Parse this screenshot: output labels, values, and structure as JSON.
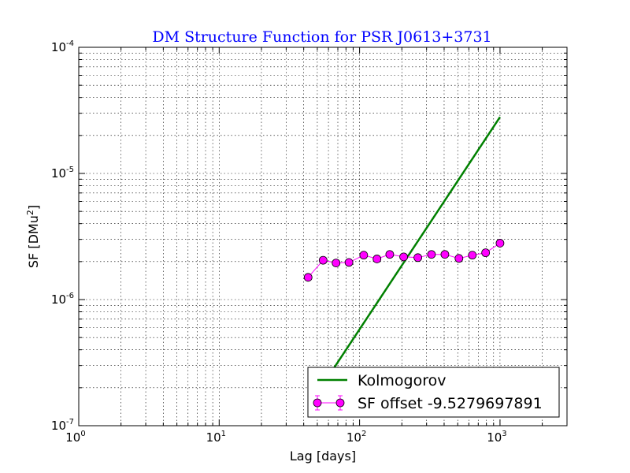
{
  "chart_data": {
    "type": "scatter",
    "title": "DM Structure Function for PSR J0613+3731",
    "xlabel": "Lag [days]",
    "ylabel_main": "SF [DMu",
    "ylabel_sup": "2",
    "ylabel_end": "]",
    "x_scale": "log",
    "y_scale": "log",
    "xlim": [
      1,
      3000
    ],
    "ylim": [
      1e-07,
      0.0001
    ],
    "grid": true,
    "legend_position": "lower-right",
    "x_ticks": [
      {
        "value": 1,
        "base": "10",
        "exp": "0"
      },
      {
        "value": 10,
        "base": "10",
        "exp": "1"
      },
      {
        "value": 100,
        "base": "10",
        "exp": "2"
      },
      {
        "value": 1000,
        "base": "10",
        "exp": "3"
      }
    ],
    "y_ticks": [
      {
        "value": 1e-07,
        "base": "10",
        "exp": "-7"
      },
      {
        "value": 1e-06,
        "base": "10",
        "exp": "-6"
      },
      {
        "value": 1e-05,
        "base": "10",
        "exp": "-5"
      },
      {
        "value": 0.0001,
        "base": "10",
        "exp": "-4"
      }
    ],
    "series": [
      {
        "name": "Kolmogorov",
        "kind": "line",
        "color": "#008000",
        "x": [
          62,
          1000
        ],
        "y": [
          2.6e-07,
          2.8e-05
        ]
      },
      {
        "name": "SF offset -9.5279697891",
        "kind": "line-markers",
        "color": "#ff00ff",
        "x": [
          43,
          55,
          68,
          84,
          107,
          133,
          164,
          206,
          260,
          325,
          405,
          510,
          635,
          790,
          1000
        ],
        "y": [
          1.5e-06,
          2.05e-06,
          1.95e-06,
          1.97e-06,
          2.25e-06,
          2.1e-06,
          2.28e-06,
          2.18e-06,
          2.15e-06,
          2.28e-06,
          2.28e-06,
          2.12e-06,
          2.25e-06,
          2.35e-06,
          2.8e-06
        ]
      }
    ],
    "colors": {
      "title": "#0000ff",
      "kolmogorov": "#008000",
      "sf": "#ff00ff"
    }
  }
}
